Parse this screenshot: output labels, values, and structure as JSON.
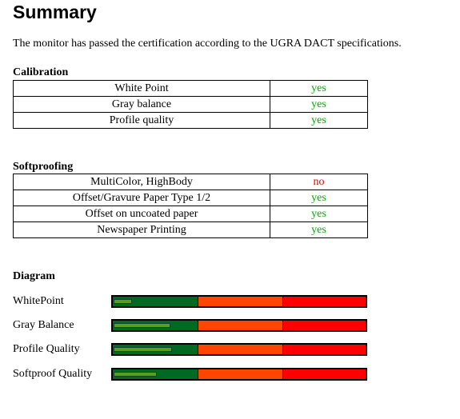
{
  "header": {
    "title": "Summary",
    "text": "The monitor has passed the certification according to the UGRA DACT specifications."
  },
  "calibration": {
    "heading": "Calibration",
    "rows": [
      {
        "label": "White Point",
        "result": "yes",
        "color": "#00b000"
      },
      {
        "label": "Gray balance",
        "result": "yes",
        "color": "#00b000"
      },
      {
        "label": "Profile quality",
        "result": "yes",
        "color": "#00b000"
      }
    ]
  },
  "softproofing": {
    "heading": "Softproofing",
    "rows": [
      {
        "label": "MultiColor, HighBody",
        "result": "no",
        "color": "#e00000"
      },
      {
        "label": "Offset/Gravure Paper Type 1/2",
        "result": "yes",
        "color": "#00b000"
      },
      {
        "label": "Offset on uncoated paper",
        "result": "yes",
        "color": "#00b000"
      },
      {
        "label": "Newspaper Printing",
        "result": "yes",
        "color": "#00b000"
      }
    ]
  },
  "diagram": {
    "heading": "Diagram",
    "scale": [
      0,
      300
    ],
    "zones": [
      {
        "end": 100,
        "color": "#006a22"
      },
      {
        "end": 200,
        "color": "#ff4500"
      },
      {
        "end": 300,
        "color": "#ff0000"
      }
    ],
    "bar_color": "#5a9e1a",
    "rows": [
      {
        "label": "WhitePoint",
        "value": 22
      },
      {
        "label": "Gray Balance",
        "value": 67
      },
      {
        "label": "Profile Quality",
        "value": 68
      },
      {
        "label": "Softproof Quality",
        "value": 51
      }
    ]
  }
}
